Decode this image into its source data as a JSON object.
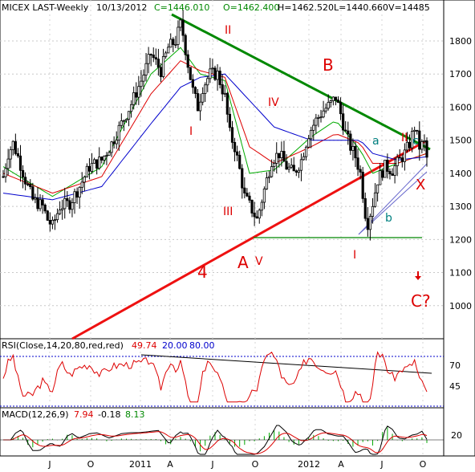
{
  "header": {
    "symbol": "MICEX LAST-Weekly",
    "date": "10/13/2012",
    "close": "C=1446.010",
    "open": "O=1462.400",
    "high": "H=1462.520",
    "low": "L=1440.660",
    "volume": "V=14485"
  },
  "chart_data": [
    {
      "type": "candlestick",
      "title": "MICEX LAST-Weekly",
      "ylim": [
        900,
        1880
      ],
      "y_ticks": [
        1000,
        1100,
        1200,
        1300,
        1400,
        1500,
        1600,
        1700,
        1800
      ],
      "x_tick_labels": [
        "J",
        "O",
        "2011",
        "A",
        "J",
        "O",
        "2012",
        "A",
        "J",
        "O"
      ],
      "price_path": [
        [
          0,
          1390
        ],
        [
          2,
          1460
        ],
        [
          4,
          1490
        ],
        [
          6,
          1450
        ],
        [
          9,
          1380
        ],
        [
          12,
          1320
        ],
        [
          16,
          1300
        ],
        [
          18,
          1260
        ],
        [
          20,
          1240
        ],
        [
          23,
          1300
        ],
        [
          27,
          1310
        ],
        [
          31,
          1360
        ],
        [
          35,
          1420
        ],
        [
          40,
          1440
        ],
        [
          44,
          1490
        ],
        [
          48,
          1550
        ],
        [
          52,
          1610
        ],
        [
          56,
          1680
        ],
        [
          60,
          1760
        ],
        [
          64,
          1710
        ],
        [
          67,
          1780
        ],
        [
          70,
          1800
        ],
        [
          72,
          1850
        ],
        [
          73,
          1820
        ],
        [
          75,
          1730
        ],
        [
          77,
          1650
        ],
        [
          79,
          1600
        ],
        [
          81,
          1660
        ],
        [
          84,
          1700
        ],
        [
          87,
          1700
        ],
        [
          90,
          1630
        ],
        [
          92,
          1520
        ],
        [
          94,
          1480
        ],
        [
          96,
          1410
        ],
        [
          98,
          1330
        ],
        [
          101,
          1290
        ],
        [
          103,
          1260
        ],
        [
          106,
          1350
        ],
        [
          109,
          1440
        ],
        [
          112,
          1460
        ],
        [
          115,
          1420
        ],
        [
          118,
          1400
        ],
        [
          121,
          1440
        ],
        [
          124,
          1520
        ],
        [
          127,
          1560
        ],
        [
          130,
          1590
        ],
        [
          133,
          1610
        ],
        [
          135,
          1630
        ],
        [
          137,
          1580
        ],
        [
          139,
          1520
        ],
        [
          141,
          1480
        ],
        [
          143,
          1450
        ],
        [
          145,
          1400
        ],
        [
          147,
          1280
        ],
        [
          148,
          1250
        ],
        [
          150,
          1310
        ],
        [
          152,
          1380
        ],
        [
          155,
          1420
        ],
        [
          158,
          1410
        ],
        [
          161,
          1440
        ],
        [
          163,
          1460
        ],
        [
          165,
          1490
        ],
        [
          167,
          1540
        ],
        [
          169,
          1480
        ],
        [
          171,
          1490
        ],
        [
          172,
          1446
        ]
      ],
      "moving_averages": [
        {
          "color": "#00aa00",
          "path": [
            [
              0,
              1420
            ],
            [
              20,
              1330
            ],
            [
              40,
              1420
            ],
            [
              60,
              1700
            ],
            [
              72,
              1780
            ],
            [
              80,
              1700
            ],
            [
              90,
              1680
            ],
            [
              100,
              1400
            ],
            [
              110,
              1410
            ],
            [
              125,
              1510
            ],
            [
              135,
              1560
            ],
            [
              145,
              1470
            ],
            [
              150,
              1400
            ],
            [
              160,
              1430
            ],
            [
              172,
              1460
            ]
          ]
        },
        {
          "color": "#dd0000",
          "path": [
            [
              0,
              1400
            ],
            [
              20,
              1340
            ],
            [
              40,
              1390
            ],
            [
              60,
              1640
            ],
            [
              72,
              1740
            ],
            [
              80,
              1710
            ],
            [
              90,
              1690
            ],
            [
              100,
              1480
            ],
            [
              110,
              1430
            ],
            [
              125,
              1480
            ],
            [
              135,
              1520
            ],
            [
              145,
              1490
            ],
            [
              150,
              1430
            ],
            [
              160,
              1430
            ],
            [
              172,
              1460
            ]
          ]
        },
        {
          "color": "#0000cc",
          "path": [
            [
              0,
              1340
            ],
            [
              20,
              1320
            ],
            [
              40,
              1360
            ],
            [
              60,
              1550
            ],
            [
              72,
              1660
            ],
            [
              80,
              1690
            ],
            [
              90,
              1700
            ],
            [
              100,
              1620
            ],
            [
              110,
              1540
            ],
            [
              125,
              1500
            ],
            [
              135,
              1500
            ],
            [
              145,
              1500
            ],
            [
              150,
              1460
            ],
            [
              160,
              1440
            ],
            [
              172,
              1450
            ]
          ]
        }
      ]
    },
    {
      "type": "line",
      "title": "RSI(Close,14,20,80,red,red)",
      "series": [
        {
          "name": "RSI",
          "value": 49.74,
          "color": "#dd0000"
        }
      ],
      "levels": [
        20.0,
        80.0
      ],
      "y_ticks": [
        70,
        45
      ]
    },
    {
      "type": "line",
      "title": "MACD(12,26,9)",
      "values": [
        7.94,
        -0.18,
        8.13
      ],
      "y_ticks": [
        20
      ]
    }
  ],
  "annotations": [
    {
      "text": "II",
      "color": "#dd0000"
    },
    {
      "text": "B",
      "color": "#dd0000"
    },
    {
      "text": "I",
      "color": "#dd0000"
    },
    {
      "text": "IV",
      "color": "#dd0000"
    },
    {
      "text": "III",
      "color": "#dd0000"
    },
    {
      "text": "A",
      "color": "#dd0000"
    },
    {
      "text": "V",
      "color": "#dd0000"
    },
    {
      "text": "4",
      "color": "#dd0000"
    },
    {
      "text": "a",
      "color": "#008080"
    },
    {
      "text": "b",
      "color": "#008080"
    },
    {
      "text": "c",
      "color": "#008080"
    },
    {
      "text": "II",
      "color": "#dd0000"
    },
    {
      "text": "X",
      "color": "#dd0000"
    },
    {
      "text": "I",
      "color": "#dd0000"
    },
    {
      "text": "C?",
      "color": "#dd0000"
    }
  ],
  "rsi_values": {
    "main": "49.74",
    "low": "20.00",
    "high": "80.00"
  },
  "macd_values": {
    "a": "7.94",
    "b": "-0.18",
    "c": "8.13"
  }
}
